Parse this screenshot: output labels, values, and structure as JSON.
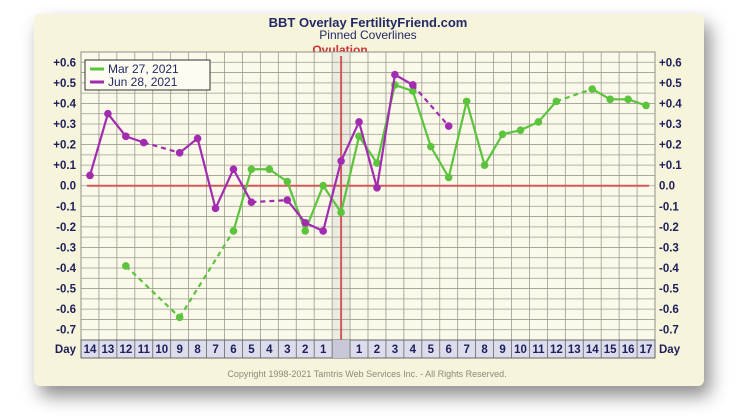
{
  "chart_data": {
    "type": "line",
    "title": "BBT Overlay FertilityFriend.com",
    "subtitle": "Pinned Coverlines",
    "ovulation_label": "Ovulation",
    "x_axis_label": "Day",
    "categories": [
      "14",
      "13",
      "12",
      "11",
      "10",
      "9",
      "8",
      "7",
      "6",
      "5",
      "4",
      "3",
      "2",
      "1",
      "",
      "1",
      "2",
      "3",
      "4",
      "5",
      "6",
      "7",
      "8",
      "9",
      "10",
      "11",
      "12",
      "13",
      "14",
      "15",
      "16",
      "17"
    ],
    "y_ticks": [
      "+0.6",
      "+0.5",
      "+0.4",
      "+0.3",
      "+0.2",
      "+0.1",
      "0.0",
      "-0.1",
      "-0.2",
      "-0.3",
      "-0.4",
      "-0.5",
      "-0.6",
      "-0.7"
    ],
    "ylim": [
      -0.75,
      0.65
    ],
    "coverline": 0.0,
    "series": [
      {
        "name": "Mar 27, 2021",
        "color": "#5cc43c",
        "values": [
          null,
          null,
          -0.39,
          null,
          null,
          -0.64,
          null,
          null,
          -0.22,
          0.08,
          0.08,
          0.02,
          -0.22,
          0.0,
          -0.13,
          0.24,
          0.11,
          0.49,
          0.46,
          0.19,
          0.04,
          0.41,
          0.1,
          0.25,
          0.27,
          0.31,
          0.41,
          null,
          0.47,
          0.42,
          0.42,
          0.39
        ]
      },
      {
        "name": "Jun 28, 2021",
        "color": "#a22bb0",
        "values": [
          0.05,
          0.35,
          0.24,
          0.21,
          null,
          0.16,
          0.23,
          -0.11,
          0.08,
          -0.08,
          null,
          -0.07,
          -0.18,
          -0.22,
          0.12,
          0.31,
          -0.01,
          0.54,
          0.49,
          null,
          0.29,
          null,
          null,
          null,
          null,
          null,
          null,
          null,
          null,
          null,
          null,
          null
        ]
      }
    ],
    "grid": true,
    "legend": "top-left"
  },
  "footer": {
    "copyright": "Copyright 1998-2021 Tamtris Web Services Inc. - All Rights Reserved."
  }
}
